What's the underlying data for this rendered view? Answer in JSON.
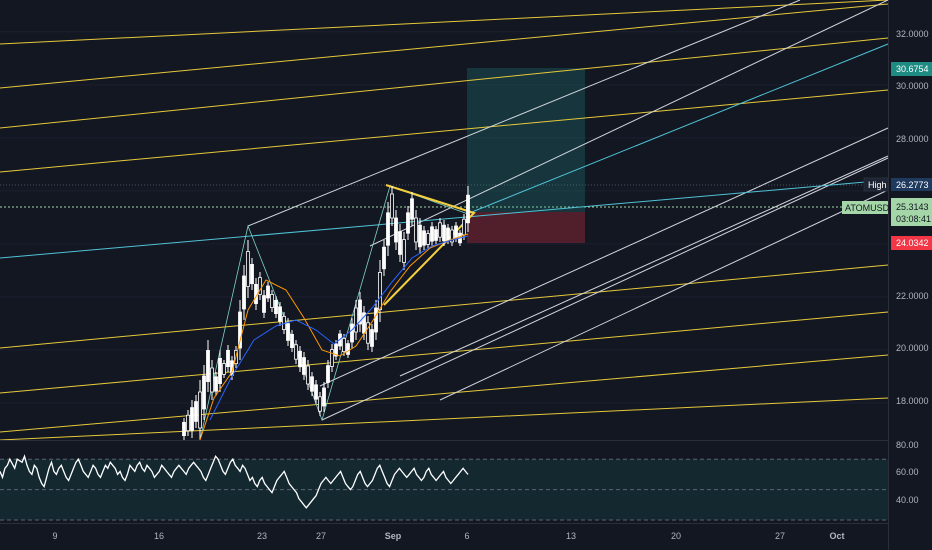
{
  "chart_data": {
    "type": "candlestick",
    "symbol_label": "ATOMUSDT",
    "price_axis": {
      "ticks": [
        "32.0000",
        "30.0000",
        "28.0000",
        "22.0000",
        "20.0000",
        "18.0000"
      ],
      "range": [
        16.6,
        33.2
      ]
    },
    "time_axis": {
      "ticks": [
        "9",
        "16",
        "23",
        "27",
        "Sep",
        "6",
        "13",
        "20",
        "27",
        "Oct"
      ]
    },
    "price_tags": {
      "target": "30.6754",
      "high_label": "High",
      "high": "26.2773",
      "last": "25.3143",
      "countdown": "03:08:41",
      "stop": "24.0342"
    },
    "rsi_axis": {
      "ticks": [
        "80.00",
        "60.00",
        "40.00"
      ],
      "levels": [
        70,
        50,
        30
      ],
      "range": [
        28,
        82
      ]
    },
    "rsi_values": [
      62,
      58,
      64,
      66,
      70,
      67,
      64,
      70,
      69,
      68,
      72,
      66,
      62,
      60,
      66,
      64,
      58,
      54,
      52,
      58,
      64,
      68,
      62,
      60,
      64,
      66,
      62,
      58,
      56,
      60,
      64,
      68,
      70,
      66,
      62,
      60,
      58,
      62,
      66,
      64,
      60,
      58,
      62,
      66,
      64,
      68,
      66,
      64,
      60,
      62,
      58,
      56,
      60,
      66,
      64,
      62,
      66,
      68,
      64,
      62,
      66,
      64,
      62,
      58,
      60,
      62,
      66,
      64,
      62,
      60,
      58,
      62,
      64,
      66,
      64,
      62,
      60,
      64,
      66,
      68,
      66,
      64,
      62,
      58,
      56,
      60,
      64,
      68,
      72,
      70,
      66,
      62,
      60,
      64,
      68,
      70,
      66,
      64,
      62,
      66,
      64,
      60,
      56,
      58,
      54,
      52,
      56,
      58,
      54,
      52,
      50,
      48,
      52,
      56,
      58,
      60,
      62,
      58,
      54,
      52,
      50,
      48,
      44,
      42,
      40,
      38,
      40,
      42,
      44,
      46,
      50,
      54,
      56,
      58,
      56,
      54,
      56,
      58,
      60,
      62,
      58,
      54,
      52,
      50,
      52,
      56,
      60,
      62,
      58,
      54,
      52,
      54,
      56,
      60,
      64,
      66,
      62,
      58,
      54,
      52,
      56,
      60,
      62,
      64,
      62,
      60,
      58,
      60,
      62,
      64,
      60,
      58,
      56,
      58,
      62,
      64,
      60,
      58,
      56,
      58,
      60,
      62,
      58,
      56,
      54,
      56,
      58,
      60,
      62,
      64,
      62,
      60
    ],
    "series": [
      {
        "name": "ATOMUSDT",
        "values": []
      }
    ]
  }
}
